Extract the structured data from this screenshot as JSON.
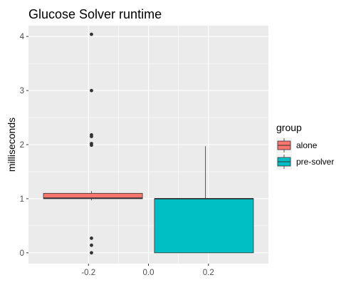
{
  "chart_data": {
    "type": "boxplot",
    "title": "Glucose Solver runtime",
    "xlabel": "",
    "ylabel": "milliseconds",
    "xlim": [
      -0.4,
      0.4
    ],
    "ylim": [
      -0.2,
      4.2
    ],
    "x_ticks": [
      -0.2,
      0.0,
      0.2
    ],
    "x_tick_labels": [
      "-0.2",
      "0.0",
      "0.2"
    ],
    "y_ticks": [
      0,
      1,
      2,
      3,
      4
    ],
    "y_tick_labels": [
      "0",
      "1",
      "2",
      "3",
      "4"
    ],
    "grid": true,
    "legend": {
      "title": "group",
      "position": "right",
      "entries": [
        {
          "name": "alone",
          "color": "#F8766D"
        },
        {
          "name": "pre-solver",
          "color": "#00BFC4"
        }
      ]
    },
    "series": [
      {
        "name": "alone",
        "color": "#F8766D",
        "x_range": [
          -0.35,
          -0.02
        ],
        "whisker_x": -0.19,
        "whisker_low": 0.97,
        "q1": 1.0,
        "median": 1.01,
        "q3": 1.1,
        "whisker_high": 1.14,
        "outliers_x": -0.19,
        "outliers": [
          4.04,
          3.0,
          2.18,
          2.15,
          2.02,
          1.99,
          0.27,
          0.14,
          0.0
        ]
      },
      {
        "name": "pre-solver",
        "color": "#00BFC4",
        "x_range": [
          0.02,
          0.35
        ],
        "whisker_x": 0.19,
        "whisker_low": 0.0,
        "q1": 0.0,
        "median": 1.0,
        "q3": 1.0,
        "whisker_high": 1.97,
        "outliers_x": 0.19,
        "outliers": []
      }
    ]
  }
}
